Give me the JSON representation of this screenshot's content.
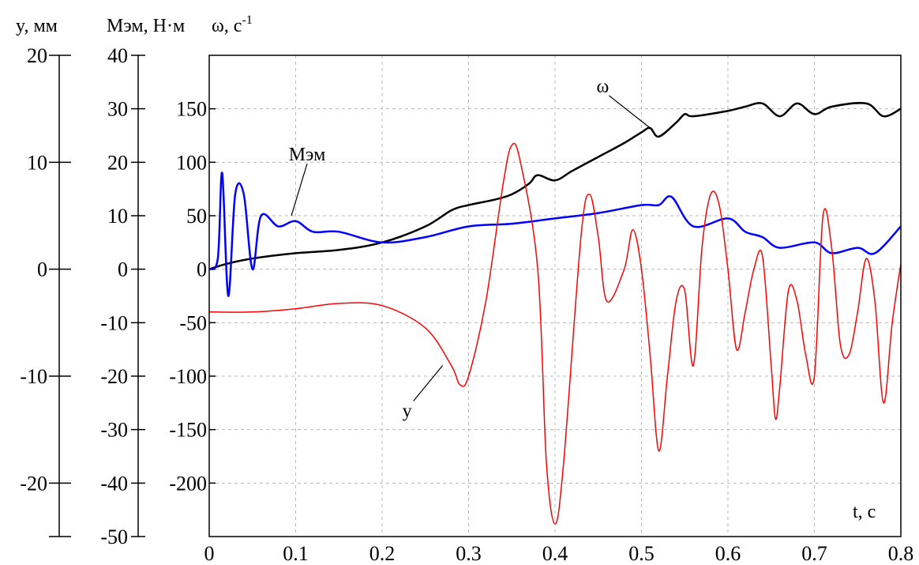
{
  "chart_data": {
    "type": "line",
    "axis_titles": {
      "y_axis": "y, мм",
      "m_axis": "Mэм, Н·м",
      "omega_axis": "ω, с",
      "omega_exp": "-1",
      "x_axis": "t, c"
    },
    "x_ticks": [
      "0",
      "0.1",
      "0.2",
      "0.3",
      "0.4",
      "0.5",
      "0.6",
      "0.7",
      "0.8"
    ],
    "xlim": [
      0,
      0.8
    ],
    "y_axis": {
      "ticks": [
        "20",
        "10",
        "0",
        "-10",
        "-20"
      ],
      "ylim": [
        -25,
        20
      ]
    },
    "m_axis": {
      "ticks": [
        "40",
        "30",
        "20",
        "10",
        "0",
        "-10",
        "-20",
        "-30",
        "-40",
        "-50"
      ],
      "ylim": [
        -50,
        40
      ]
    },
    "omega_axis": {
      "ticks": [
        "150",
        "100",
        "50",
        "0",
        "-50",
        "-100",
        "-150",
        "-200"
      ],
      "ylim": [
        -250,
        200
      ]
    },
    "grid": true,
    "series": [
      {
        "name": "ω",
        "axis": "omega",
        "color": "#000000",
        "points": [
          [
            0,
            0
          ],
          [
            0.02,
            5
          ],
          [
            0.05,
            10
          ],
          [
            0.1,
            15
          ],
          [
            0.15,
            18
          ],
          [
            0.2,
            25
          ],
          [
            0.25,
            40
          ],
          [
            0.28,
            55
          ],
          [
            0.3,
            60
          ],
          [
            0.33,
            65
          ],
          [
            0.35,
            70
          ],
          [
            0.37,
            80
          ],
          [
            0.38,
            88
          ],
          [
            0.4,
            83
          ],
          [
            0.42,
            92
          ],
          [
            0.45,
            105
          ],
          [
            0.48,
            118
          ],
          [
            0.5,
            128
          ],
          [
            0.51,
            132
          ],
          [
            0.52,
            124
          ],
          [
            0.54,
            137
          ],
          [
            0.55,
            145
          ],
          [
            0.56,
            143
          ],
          [
            0.6,
            148
          ],
          [
            0.62,
            152
          ],
          [
            0.64,
            155
          ],
          [
            0.66,
            143
          ],
          [
            0.68,
            155
          ],
          [
            0.7,
            145
          ],
          [
            0.72,
            152
          ],
          [
            0.76,
            155
          ],
          [
            0.78,
            143
          ],
          [
            0.8,
            150
          ]
        ]
      },
      {
        "name": "Mэм",
        "axis": "m",
        "color": "#0000ff",
        "points": [
          [
            0,
            0
          ],
          [
            0.01,
            2
          ],
          [
            0.015,
            18
          ],
          [
            0.022,
            -5
          ],
          [
            0.03,
            14
          ],
          [
            0.04,
            14
          ],
          [
            0.05,
            0
          ],
          [
            0.06,
            10
          ],
          [
            0.08,
            8
          ],
          [
            0.1,
            9
          ],
          [
            0.12,
            7
          ],
          [
            0.15,
            7
          ],
          [
            0.2,
            5
          ],
          [
            0.25,
            6
          ],
          [
            0.3,
            8
          ],
          [
            0.35,
            8.5
          ],
          [
            0.4,
            9.5
          ],
          [
            0.45,
            10.5
          ],
          [
            0.5,
            12
          ],
          [
            0.52,
            12
          ],
          [
            0.535,
            13.5
          ],
          [
            0.56,
            8
          ],
          [
            0.6,
            9.5
          ],
          [
            0.62,
            7
          ],
          [
            0.64,
            6
          ],
          [
            0.66,
            4
          ],
          [
            0.7,
            5
          ],
          [
            0.72,
            3
          ],
          [
            0.75,
            4
          ],
          [
            0.77,
            3
          ],
          [
            0.8,
            8
          ]
        ]
      },
      {
        "name": "y",
        "axis": "y",
        "color": "#ff0000",
        "points": [
          [
            0,
            -4
          ],
          [
            0.05,
            -4
          ],
          [
            0.1,
            -3.7
          ],
          [
            0.15,
            -3.2
          ],
          [
            0.2,
            -3.4
          ],
          [
            0.25,
            -5.5
          ],
          [
            0.28,
            -9
          ],
          [
            0.29,
            -10.8
          ],
          [
            0.3,
            -10
          ],
          [
            0.32,
            -3
          ],
          [
            0.34,
            8
          ],
          [
            0.35,
            11.6
          ],
          [
            0.36,
            10
          ],
          [
            0.38,
            0
          ],
          [
            0.39,
            -18
          ],
          [
            0.4,
            -23.8
          ],
          [
            0.41,
            -18
          ],
          [
            0.43,
            3
          ],
          [
            0.44,
            7
          ],
          [
            0.45,
            3
          ],
          [
            0.46,
            -3
          ],
          [
            0.48,
            0
          ],
          [
            0.49,
            3.7
          ],
          [
            0.5,
            0
          ],
          [
            0.51,
            -8
          ],
          [
            0.52,
            -17
          ],
          [
            0.53,
            -10
          ],
          [
            0.54,
            -3
          ],
          [
            0.55,
            -2
          ],
          [
            0.56,
            -9
          ],
          [
            0.57,
            2
          ],
          [
            0.58,
            7
          ],
          [
            0.59,
            6
          ],
          [
            0.6,
            0
          ],
          [
            0.61,
            -7.5
          ],
          [
            0.62,
            -4
          ],
          [
            0.63,
            0
          ],
          [
            0.64,
            1.2
          ],
          [
            0.65,
            -9
          ],
          [
            0.655,
            -14
          ],
          [
            0.66,
            -11
          ],
          [
            0.67,
            -2
          ],
          [
            0.68,
            -3
          ],
          [
            0.69,
            -8
          ],
          [
            0.7,
            -10
          ],
          [
            0.71,
            5
          ],
          [
            0.72,
            2
          ],
          [
            0.73,
            -7
          ],
          [
            0.74,
            -8
          ],
          [
            0.75,
            -4
          ],
          [
            0.76,
            1
          ],
          [
            0.77,
            -3
          ],
          [
            0.78,
            -12.5
          ],
          [
            0.79,
            -5
          ],
          [
            0.8,
            0.5
          ]
        ]
      }
    ],
    "annotations": [
      {
        "text": "ω",
        "target_series": "ω",
        "at": [
          0.51,
          132
        ]
      },
      {
        "text": "Mэм",
        "target_series": "Mэм",
        "at": [
          0.095,
          10
        ]
      },
      {
        "text": "y",
        "target_series": "y",
        "at": [
          0.27,
          -9
        ]
      }
    ]
  }
}
